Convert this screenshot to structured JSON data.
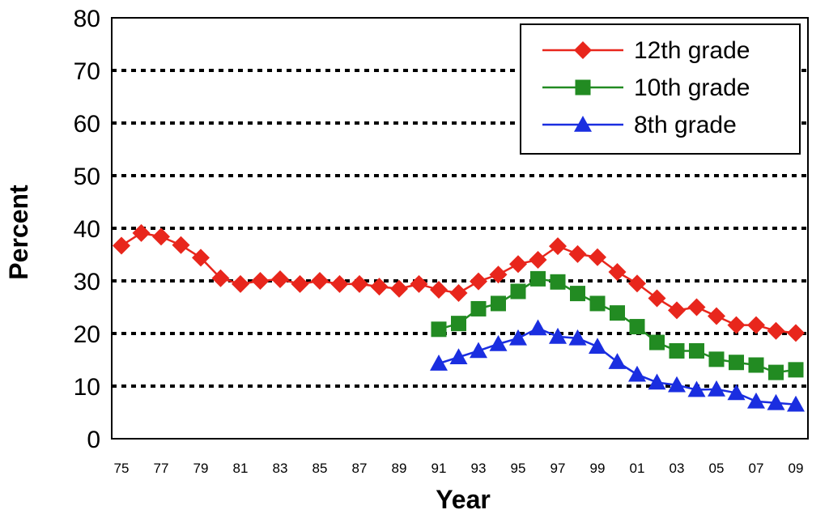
{
  "chart_data": {
    "type": "line",
    "title": "",
    "xlabel": "Year",
    "ylabel": "Percent",
    "ylim": [
      0,
      80
    ],
    "yticks": [
      "0",
      "10",
      "20",
      "30",
      "40",
      "50",
      "60",
      "70",
      "80"
    ],
    "xticks": [
      "75",
      "77",
      "79",
      "81",
      "83",
      "85",
      "87",
      "89",
      "91",
      "93",
      "95",
      "97",
      "99",
      "01",
      "03",
      "05",
      "07",
      "09"
    ],
    "grid": "horizontal dotted",
    "legend_position": "top-right",
    "x": [
      "75",
      "76",
      "77",
      "78",
      "79",
      "80",
      "81",
      "82",
      "83",
      "84",
      "85",
      "86",
      "87",
      "88",
      "89",
      "90",
      "91",
      "92",
      "93",
      "94",
      "95",
      "96",
      "97",
      "98",
      "99",
      "00",
      "01",
      "02",
      "03",
      "04",
      "05",
      "06",
      "07",
      "08",
      "09"
    ],
    "series": [
      {
        "name": "12th grade",
        "color": "#e8261c",
        "marker": "diamond",
        "values": [
          36.7,
          39.1,
          38.4,
          36.8,
          34.4,
          30.5,
          29.4,
          30.0,
          30.3,
          29.4,
          30.0,
          29.4,
          29.4,
          28.9,
          28.5,
          29.4,
          28.3,
          27.7,
          29.9,
          31.2,
          33.2,
          34.0,
          36.6,
          35.1,
          34.5,
          31.7,
          29.5,
          26.7,
          24.4,
          25.0,
          23.3,
          21.6,
          21.6,
          20.5,
          20.1
        ]
      },
      {
        "name": "10th grade",
        "color": "#228b22",
        "marker": "square",
        "values": [
          null,
          null,
          null,
          null,
          null,
          null,
          null,
          null,
          null,
          null,
          null,
          null,
          null,
          null,
          null,
          null,
          20.8,
          21.9,
          24.7,
          25.7,
          28.0,
          30.4,
          29.8,
          27.6,
          25.7,
          23.9,
          21.3,
          18.3,
          16.7,
          16.7,
          15.1,
          14.5,
          14.0,
          12.6,
          13.1
        ]
      },
      {
        "name": "8th grade",
        "color": "#1a2ee0",
        "marker": "triangle",
        "values": [
          null,
          null,
          null,
          null,
          null,
          null,
          null,
          null,
          null,
          null,
          null,
          null,
          null,
          null,
          null,
          null,
          14.3,
          15.5,
          16.7,
          18.0,
          19.1,
          21.0,
          19.4,
          19.1,
          17.5,
          14.6,
          12.2,
          10.7,
          10.2,
          9.3,
          9.4,
          8.7,
          7.1,
          6.8,
          6.5
        ]
      }
    ]
  }
}
